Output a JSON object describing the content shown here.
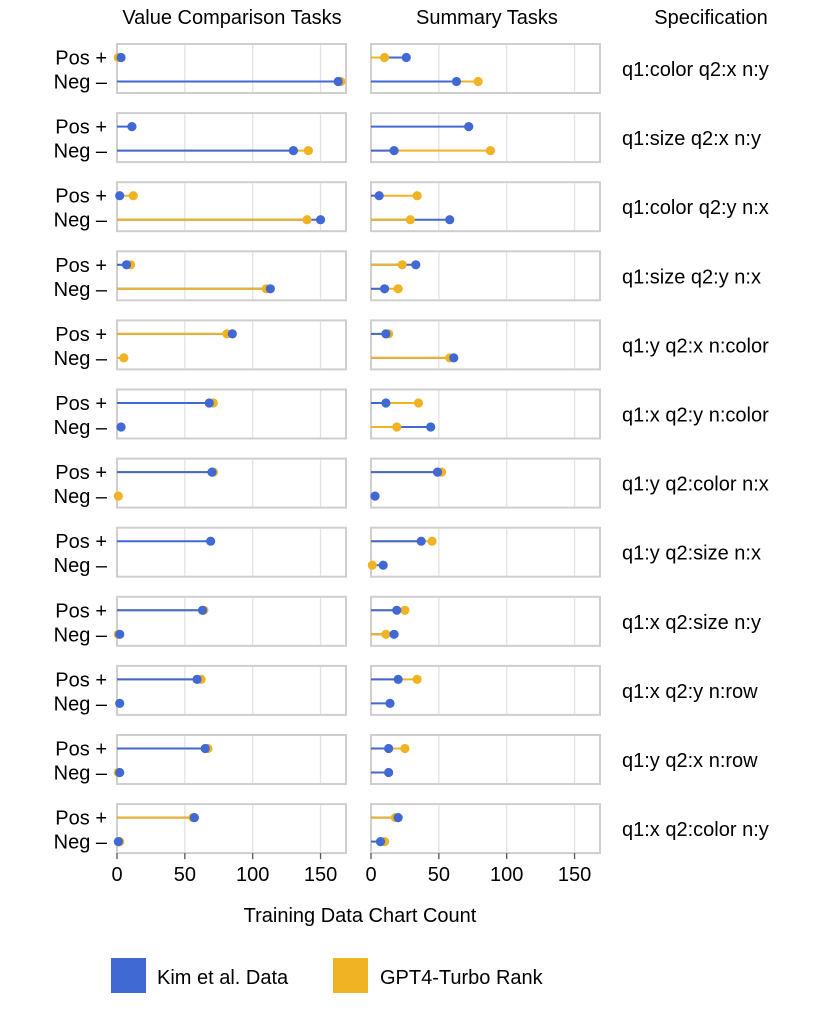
{
  "chart_data": {
    "type": "dot-line",
    "column_titles": [
      "Value Comparison Tasks",
      "Summary Tasks",
      "Specification"
    ],
    "row_labels": [
      "Pos +",
      "Neg –"
    ],
    "xlabel": "Training Data Chart Count",
    "x_ticks": [
      0,
      50,
      100,
      150
    ],
    "xlim": [
      0,
      170
    ],
    "series": [
      {
        "name": "Kim et al. Data",
        "color": "#4169d4"
      },
      {
        "name": "GPT4-Turbo Rank",
        "color": "#f0b323"
      }
    ],
    "facets": [
      {
        "spec": "q1:color q2:x n:y",
        "value": {
          "pos": {
            "kim": 3,
            "gpt": 1
          },
          "neg": {
            "kim": 163,
            "gpt": 165
          }
        },
        "summary": {
          "pos": {
            "kim": 26,
            "gpt": 10
          },
          "neg": {
            "kim": 63,
            "gpt": 79
          }
        }
      },
      {
        "spec": "q1:size q2:x n:y",
        "value": {
          "pos": {
            "kim": 11,
            "gpt": null
          },
          "neg": {
            "kim": 130,
            "gpt": 141
          }
        },
        "summary": {
          "pos": {
            "kim": 72,
            "gpt": null
          },
          "neg": {
            "kim": 17,
            "gpt": 88
          }
        }
      },
      {
        "spec": "q1:color q2:y n:x",
        "value": {
          "pos": {
            "kim": 2,
            "gpt": 12
          },
          "neg": {
            "kim": 150,
            "gpt": 140
          }
        },
        "summary": {
          "pos": {
            "kim": 6,
            "gpt": 34
          },
          "neg": {
            "kim": 58,
            "gpt": 29
          }
        }
      },
      {
        "spec": "q1:size q2:y n:x",
        "value": {
          "pos": {
            "kim": 7,
            "gpt": 10
          },
          "neg": {
            "kim": 113,
            "gpt": 110
          }
        },
        "summary": {
          "pos": {
            "kim": 33,
            "gpt": 23
          },
          "neg": {
            "kim": 10,
            "gpt": 20
          }
        }
      },
      {
        "spec": "q1:y q2:x n:color",
        "value": {
          "pos": {
            "kim": 85,
            "gpt": 81
          },
          "neg": {
            "kim": null,
            "gpt": 5
          }
        },
        "summary": {
          "pos": {
            "kim": 11,
            "gpt": 13
          },
          "neg": {
            "kim": 61,
            "gpt": 58
          }
        }
      },
      {
        "spec": "q1:x q2:y n:color",
        "value": {
          "pos": {
            "kim": 68,
            "gpt": 71
          },
          "neg": {
            "kim": 3,
            "gpt": null
          }
        },
        "summary": {
          "pos": {
            "kim": 11,
            "gpt": 35
          },
          "neg": {
            "kim": 44,
            "gpt": 19
          }
        }
      },
      {
        "spec": "q1:y q2:color n:x",
        "value": {
          "pos": {
            "kim": 70,
            "gpt": 71
          },
          "neg": {
            "kim": null,
            "gpt": 1
          }
        },
        "summary": {
          "pos": {
            "kim": 49,
            "gpt": 52
          },
          "neg": {
            "kim": 3,
            "gpt": null
          }
        }
      },
      {
        "spec": "q1:y q2:size n:x",
        "value": {
          "pos": {
            "kim": 69,
            "gpt": null
          },
          "neg": {
            "kim": null,
            "gpt": null
          }
        },
        "summary": {
          "pos": {
            "kim": 37,
            "gpt": 45
          },
          "neg": {
            "kim": 9,
            "gpt": 1
          }
        }
      },
      {
        "spec": "q1:x q2:size n:y",
        "value": {
          "pos": {
            "kim": 63,
            "gpt": 64
          },
          "neg": {
            "kim": 2,
            "gpt": 1
          }
        },
        "summary": {
          "pos": {
            "kim": 19,
            "gpt": 25
          },
          "neg": {
            "kim": 17,
            "gpt": 11
          }
        }
      },
      {
        "spec": "q1:x q2:y n:row",
        "value": {
          "pos": {
            "kim": 59,
            "gpt": 62
          },
          "neg": {
            "kim": 2,
            "gpt": null
          }
        },
        "summary": {
          "pos": {
            "kim": 20,
            "gpt": 34
          },
          "neg": {
            "kim": 14,
            "gpt": null
          }
        }
      },
      {
        "spec": "q1:y q2:x n:row",
        "value": {
          "pos": {
            "kim": 65,
            "gpt": 67
          },
          "neg": {
            "kim": 2,
            "gpt": 1
          }
        },
        "summary": {
          "pos": {
            "kim": 13,
            "gpt": 25
          },
          "neg": {
            "kim": 13,
            "gpt": null
          }
        }
      },
      {
        "spec": "q1:x q2:color n:y",
        "value": {
          "pos": {
            "kim": 57,
            "gpt": 56
          },
          "neg": {
            "kim": 1,
            "gpt": 2
          }
        },
        "summary": {
          "pos": {
            "kim": 20,
            "gpt": 18
          },
          "neg": {
            "kim": 7,
            "gpt": 10
          }
        }
      }
    ],
    "legend_position": "bottom"
  }
}
